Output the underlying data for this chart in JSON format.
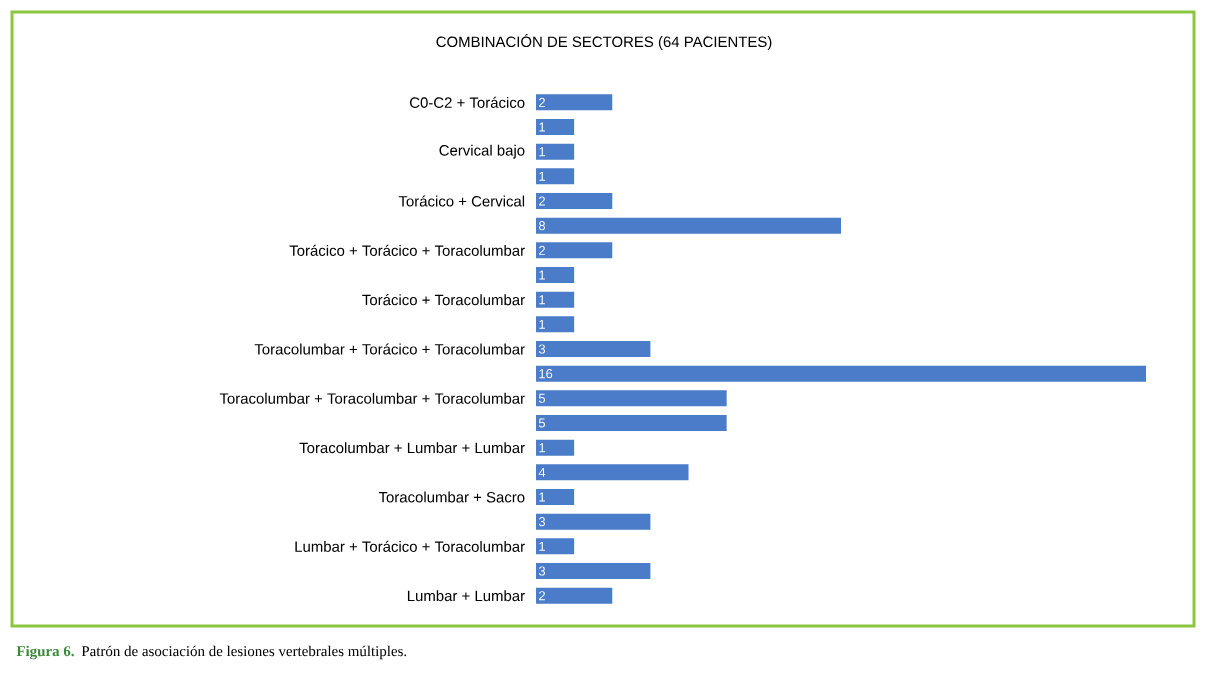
{
  "chart_data": {
    "type": "bar",
    "orientation": "horizontal",
    "title": "COMBINACIÓN DE SECTORES (64 PACIENTES)",
    "categories": [
      "C0-C2 + Torácico",
      null,
      "Cervical bajo",
      null,
      "Torácico + Cervical",
      null,
      "Torácico + Torácico + Toracolumbar",
      null,
      "Torácico + Toracolumbar",
      null,
      "Toracolumbar + Torácico + Toracolumbar",
      null,
      "Toracolumbar + Toracolumbar + Toracolumbar",
      null,
      "Toracolumbar + Lumbar + Lumbar",
      null,
      "Toracolumbar + Sacro",
      null,
      "Lumbar + Torácico + Toracolumbar",
      null,
      "Lumbar + Lumbar"
    ],
    "values": [
      2,
      1,
      1,
      1,
      2,
      8,
      2,
      1,
      1,
      1,
      3,
      16,
      5,
      5,
      1,
      4,
      1,
      3,
      1,
      3,
      2
    ],
    "color": "#4a7cc9",
    "data_labels": true,
    "tick_labels": "y",
    "annotations": [
      "Figura 6.",
      "Patrón de asociación de lesiones vertebrales múltiples."
    ]
  }
}
